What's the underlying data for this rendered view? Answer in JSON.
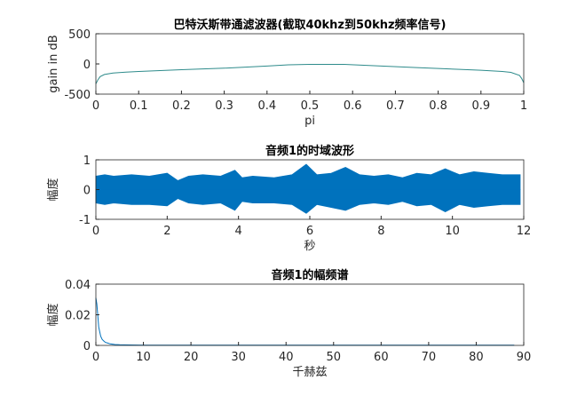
{
  "chart_data": [
    {
      "type": "line",
      "title": "巴特沃斯带通滤波器(截取40khz到50khz频率信号)",
      "xlabel": "pi",
      "ylabel": "gain in dB",
      "x": [
        0,
        0.005,
        0.01,
        0.02,
        0.04,
        0.07,
        0.1,
        0.15,
        0.2,
        0.3,
        0.4,
        0.45,
        0.5,
        0.58,
        0.65,
        0.75,
        0.85,
        0.9,
        0.95,
        0.97,
        0.99,
        0.995,
        1
      ],
      "values": [
        -330,
        -260,
        -210,
        -175,
        -150,
        -135,
        -125,
        -110,
        -95,
        -70,
        -35,
        -15,
        -8,
        -8,
        -30,
        -60,
        -90,
        -105,
        -125,
        -140,
        -190,
        -240,
        -310
      ],
      "color": "#2e8b8b",
      "xlim": [
        0,
        1
      ],
      "ylim": [
        -500,
        500
      ],
      "xticks": [
        0,
        0.1,
        0.2,
        0.3,
        0.4,
        0.5,
        0.6,
        0.7,
        0.8,
        0.9,
        1
      ],
      "yticks": [
        -500,
        0,
        500
      ]
    },
    {
      "type": "area",
      "title": "音频1的时域波形",
      "xlabel": "秒",
      "ylabel": "幅度",
      "x": [
        0,
        0.25,
        0.5,
        1,
        1.5,
        2,
        2.3,
        2.6,
        3,
        3.5,
        3.9,
        4.1,
        4.4,
        5,
        5.5,
        5.9,
        6.2,
        6.6,
        7,
        7.4,
        7.8,
        8.2,
        8.6,
        9,
        9.4,
        9.8,
        10.2,
        10.6,
        11,
        11.4,
        11.9
      ],
      "series": [
        {
          "color": "#0072bd",
          "values": [
            0.45,
            0.5,
            0.45,
            0.5,
            0.45,
            0.55,
            0.3,
            0.45,
            0.5,
            0.45,
            0.65,
            0.4,
            0.45,
            0.4,
            0.5,
            0.85,
            0.5,
            0.55,
            0.75,
            0.5,
            0.45,
            0.5,
            0.4,
            0.55,
            0.5,
            0.7,
            0.5,
            0.6,
            0.55,
            0.5,
            0.5
          ]
        },
        {
          "color": "#0072bd",
          "values": [
            -0.45,
            -0.5,
            -0.45,
            -0.5,
            -0.5,
            -0.55,
            -0.3,
            -0.45,
            -0.5,
            -0.45,
            -0.7,
            -0.4,
            -0.45,
            -0.45,
            -0.5,
            -0.8,
            -0.5,
            -0.6,
            -0.7,
            -0.5,
            -0.45,
            -0.5,
            -0.4,
            -0.55,
            -0.5,
            -0.75,
            -0.5,
            -0.6,
            -0.55,
            -0.5,
            -0.5
          ]
        }
      ],
      "xlim": [
        0,
        12
      ],
      "ylim": [
        -1,
        1
      ],
      "xticks": [
        0,
        2,
        4,
        6,
        8,
        10,
        12
      ],
      "yticks": [
        -1,
        0,
        1
      ]
    },
    {
      "type": "line",
      "title": "音频1的幅频谱",
      "xlabel": "千赫兹",
      "ylabel": "幅度",
      "x": [
        0,
        0.2,
        0.4,
        0.6,
        0.8,
        1,
        1.3,
        1.6,
        2,
        2.5,
        3,
        4,
        5,
        7,
        10,
        20,
        30,
        40,
        50,
        60,
        70,
        80,
        88
      ],
      "values": [
        0.031,
        0.027,
        0.02,
        0.012,
        0.009,
        0.006,
        0.004,
        0.003,
        0.002,
        0.0015,
        0.001,
        0.0006,
        0.0004,
        0.0003,
        0.0002,
        0.0001,
        0.0001,
        0.0001,
        0.0001,
        0.0001,
        0.0001,
        0.0001,
        0.0001
      ],
      "color": "#0072bd",
      "xlim": [
        0,
        90
      ],
      "ylim": [
        0,
        0.04
      ],
      "xticks": [
        0,
        10,
        20,
        30,
        40,
        50,
        60,
        70,
        80,
        90
      ],
      "yticks": [
        0,
        0.02,
        0.04
      ]
    }
  ]
}
